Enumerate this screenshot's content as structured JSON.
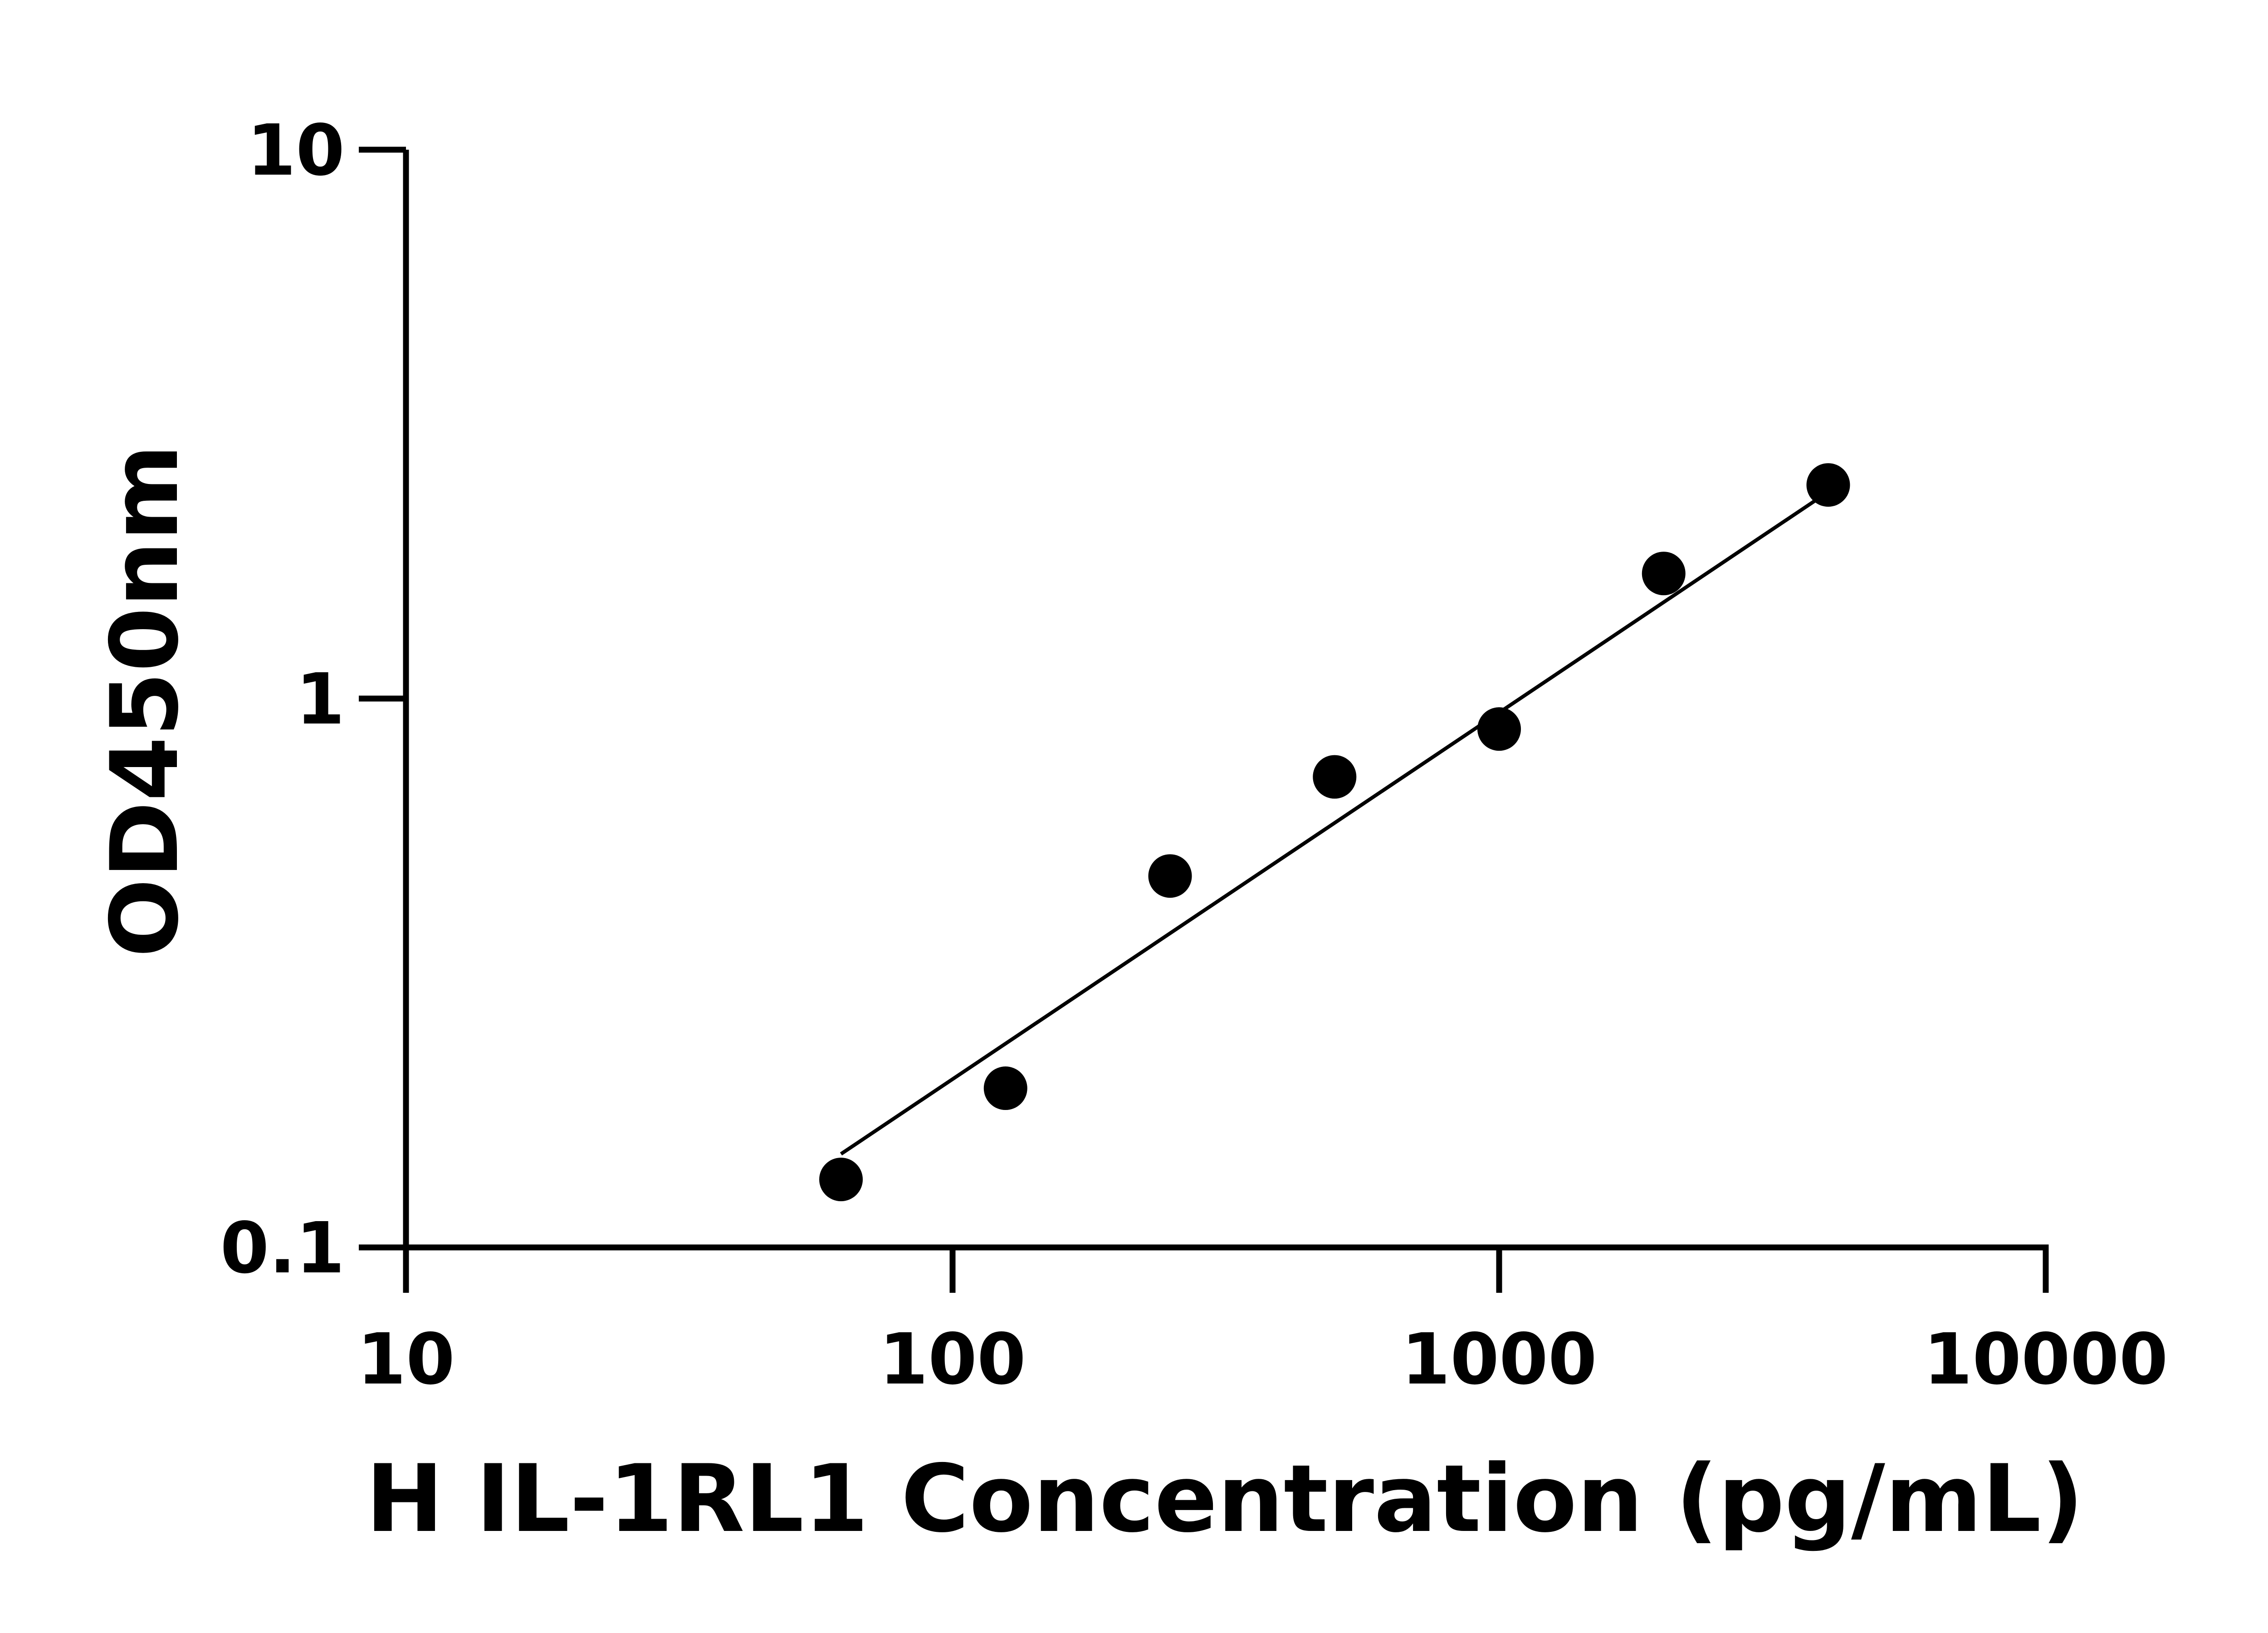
{
  "chart_data": {
    "type": "scatter",
    "title": "",
    "xlabel": "H IL-1RL1 Concentration (pg/mL)",
    "ylabel": "OD450nm",
    "xscale": "log",
    "yscale": "log",
    "xlim": [
      10,
      10000
    ],
    "ylim": [
      0.1,
      10
    ],
    "xticks": [
      10,
      100,
      1000,
      10000
    ],
    "xtick_labels": [
      "10",
      "100",
      "1000",
      "10000"
    ],
    "yticks": [
      0.1,
      1,
      10
    ],
    "ytick_labels": [
      "0.1",
      "1",
      "10"
    ],
    "grid": false,
    "legend": "none",
    "points": {
      "x": [
        62.5,
        125,
        250,
        500,
        1000,
        2000,
        4000
      ],
      "y": [
        0.133,
        0.195,
        0.475,
        0.72,
        0.88,
        1.69,
        2.45
      ]
    },
    "fit_line": {
      "x": [
        62.5,
        4000
      ],
      "y": [
        0.148,
        2.38
      ]
    },
    "colors": {
      "points": "#000000",
      "line": "#000000",
      "axes": "#000000"
    }
  }
}
